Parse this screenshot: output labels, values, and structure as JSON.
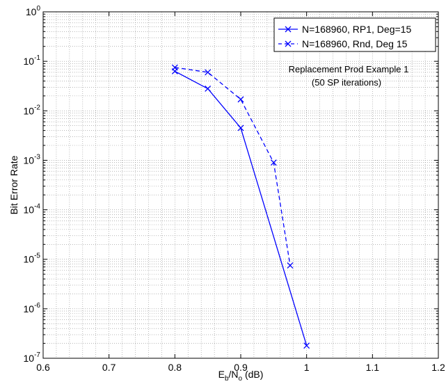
{
  "chart_data": {
    "type": "line",
    "xlabel": {
      "main": "E",
      "sub1": "b",
      "mid": "/N",
      "sub2": "o",
      "tail": " (dB)"
    },
    "ylabel": "Bit Error Rate",
    "xlim": [
      0.6,
      1.2
    ],
    "ylim": [
      1e-07,
      1
    ],
    "yscale": "log",
    "grid": true,
    "legend_position": "top-right",
    "x_tick_labels": [
      "0.6",
      "0.7",
      "0.8",
      "0.9",
      "1",
      "1.1",
      "1.2"
    ],
    "y_tick_labels": [
      {
        "base": "10",
        "exp": "0"
      },
      {
        "base": "10",
        "exp": "-1"
      },
      {
        "base": "10",
        "exp": "-2"
      },
      {
        "base": "10",
        "exp": "-3"
      },
      {
        "base": "10",
        "exp": "-4"
      },
      {
        "base": "10",
        "exp": "-5"
      },
      {
        "base": "10",
        "exp": "-6"
      },
      {
        "base": "10",
        "exp": "-7"
      }
    ],
    "series": [
      {
        "name": "N=168960, RP1, Deg=15",
        "style": "solid",
        "color": "#0000ff",
        "marker": "x",
        "x": [
          0.8,
          0.85,
          0.9,
          1.0
        ],
        "y": [
          0.063,
          0.028,
          0.0045,
          1.8e-07
        ]
      },
      {
        "name": "N=168960, Rnd, Deg 15",
        "style": "dashed",
        "color": "#0000ff",
        "marker": "x",
        "x": [
          0.8,
          0.85,
          0.9,
          0.95,
          0.975
        ],
        "y": [
          0.075,
          0.06,
          0.017,
          0.0009,
          7.5e-06
        ]
      }
    ],
    "annotation": [
      "Replacement Prod Example 1",
      "(50 SP iterations)"
    ]
  }
}
